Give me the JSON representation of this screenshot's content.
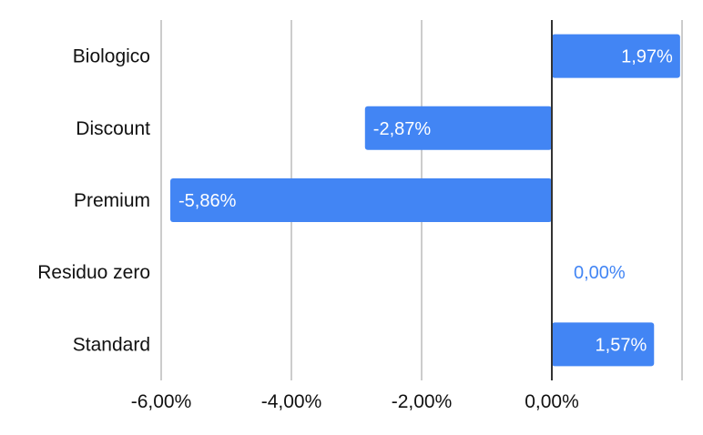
{
  "chart_data": {
    "type": "bar",
    "orientation": "horizontal",
    "categories": [
      "Biologico",
      "Discount",
      "Premium",
      "Residuo zero",
      "Standard"
    ],
    "values": [
      1.97,
      -2.87,
      -5.86,
      0.0,
      1.57
    ],
    "data_labels": [
      "1,97%",
      "-2,87%",
      "-5,86%",
      "0,00%",
      "1,57%"
    ],
    "x_ticks": [
      -6,
      -4,
      -2,
      0
    ],
    "x_tick_labels": [
      "-6,00%",
      "-4,00%",
      "-2,00%",
      "0,00%"
    ],
    "xlim": [
      -6,
      2
    ],
    "grid": true,
    "legend": "none",
    "bar_color": "#4285f4",
    "title": "",
    "xlabel": "",
    "ylabel": ""
  }
}
